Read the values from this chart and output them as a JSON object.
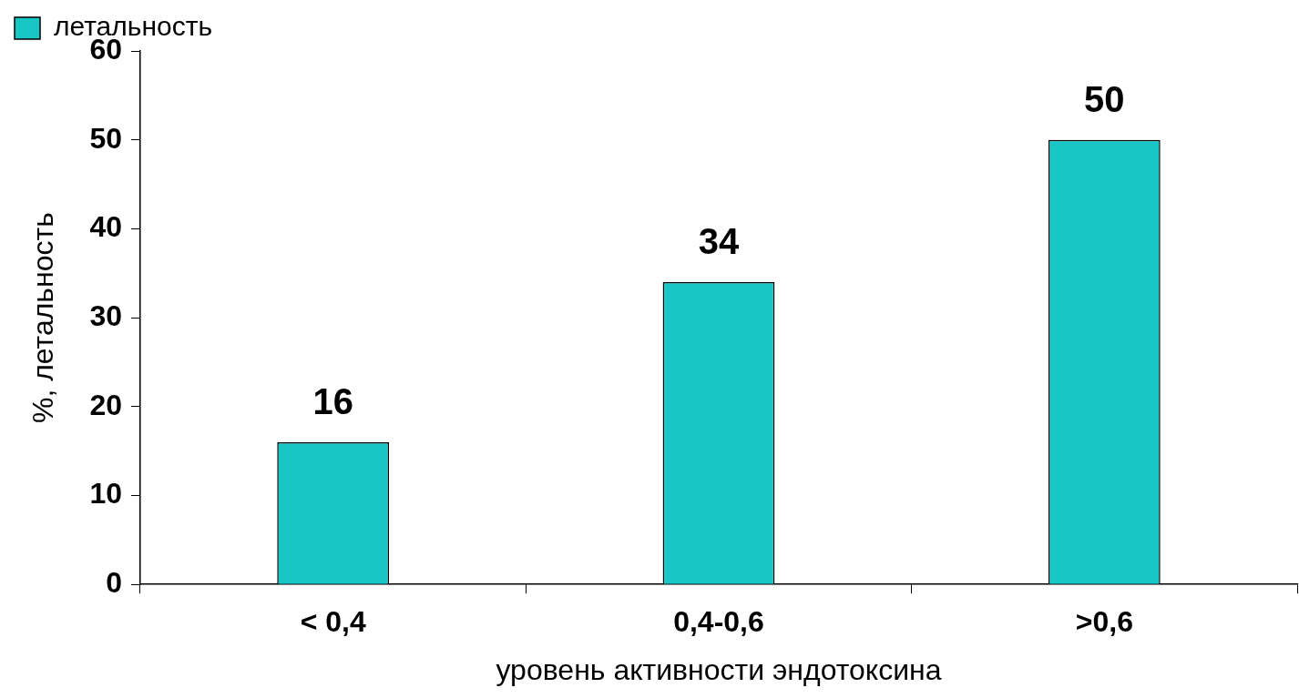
{
  "chart_data": {
    "type": "bar",
    "xlabel": "уровень активности эндотоксина",
    "ylabel": "%, летальность",
    "categories": [
      "< 0,4",
      "0,4-0,6",
      ">0,6"
    ],
    "series": [
      {
        "name": "летальность",
        "color": "#19c6c6",
        "values": [
          16,
          34,
          50
        ]
      }
    ],
    "ylim": [
      0,
      60
    ],
    "yticks": [
      0,
      10,
      20,
      30,
      40,
      50,
      60
    ],
    "grid": false,
    "legend": "top left",
    "data_labels": true
  }
}
